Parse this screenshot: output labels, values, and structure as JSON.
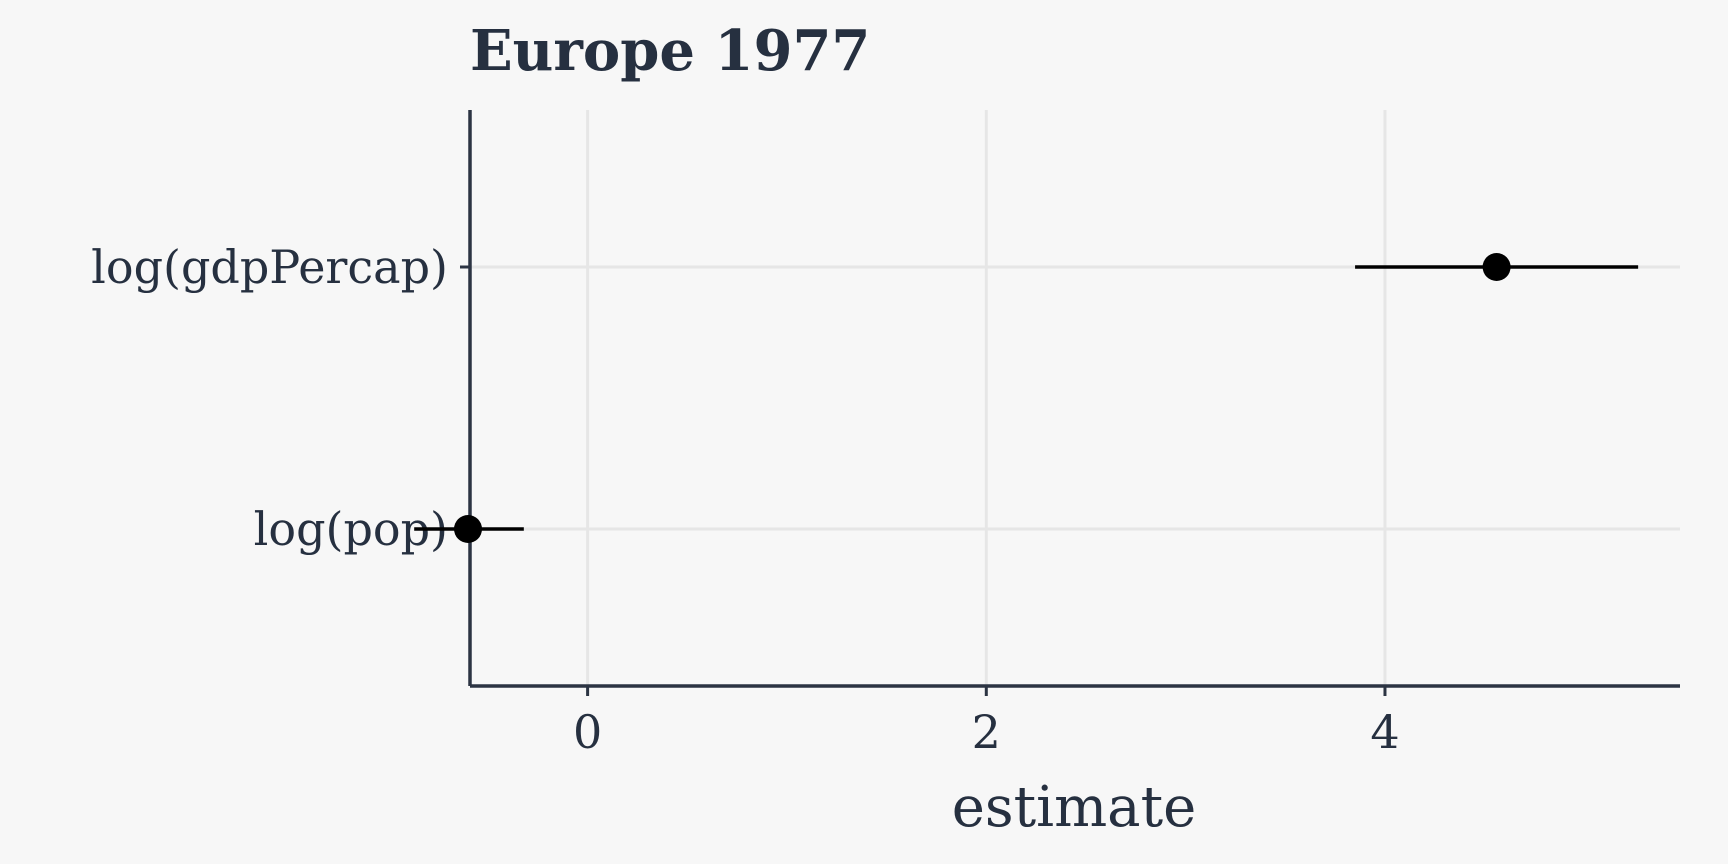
{
  "chart_data": {
    "type": "scatter",
    "title": "Europe 1977",
    "xlabel": "estimate",
    "ylabel": "",
    "xlim": [
      -0.59,
      5.48
    ],
    "x_ticks": [
      0,
      2,
      4
    ],
    "x_tick_labels": [
      "0",
      "2",
      "4"
    ],
    "categories": [
      "log(gdpPercap)",
      "log(pop)"
    ],
    "points": [
      {
        "term": "log(gdpPercap)",
        "estimate": 4.56,
        "conf_low": 3.85,
        "conf_high": 5.27
      },
      {
        "term": "log(pop)",
        "estimate": -0.6,
        "conf_low": -0.87,
        "conf_high": -0.32
      }
    ],
    "grid": true,
    "legend": "none",
    "colors": {
      "background": "#f7f7f7",
      "text": "#263040",
      "axis": "#2c3443",
      "grid": "#e6e6e6",
      "marks": "#000000"
    }
  }
}
